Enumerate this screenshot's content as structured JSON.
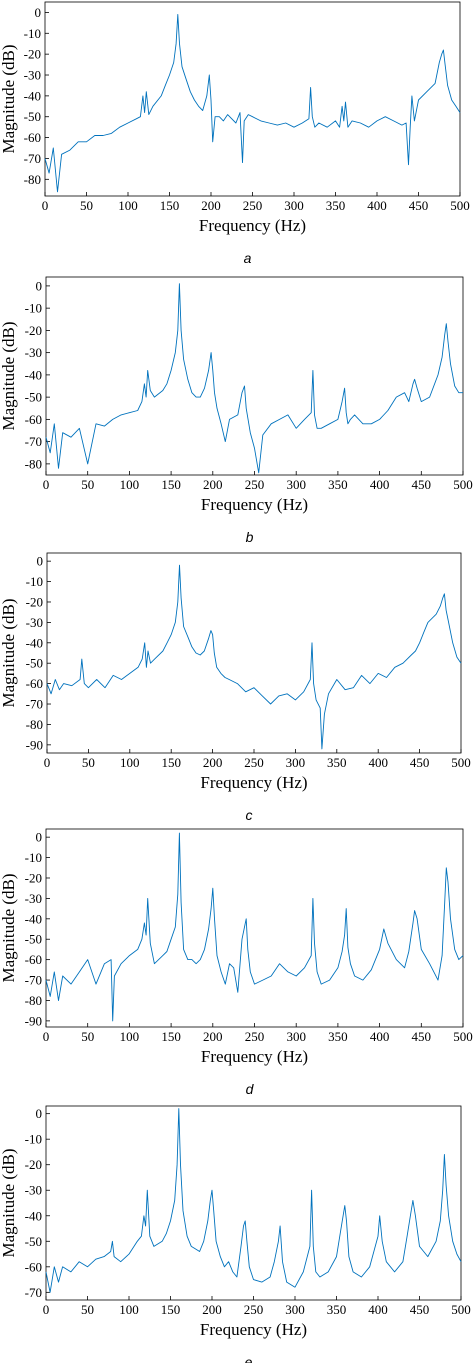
{
  "line_color": "#0072BD",
  "chart_data": [
    {
      "type": "line",
      "caption": "a",
      "xlabel": "Frequency (Hz)",
      "ylabel": "Magnitude (dB)",
      "xlim": [
        0,
        500
      ],
      "ylim": [
        -88,
        5
      ],
      "xticks": [
        "0",
        "50",
        "100",
        "150",
        "200",
        "250",
        "300",
        "350",
        "400",
        "450",
        "500"
      ],
      "yticks": [
        "0",
        "-10",
        "-20",
        "-30",
        "-40",
        "-50",
        "-60",
        "-70",
        "-80"
      ],
      "grid": false,
      "series": [
        {
          "x": [
            0,
            5,
            10,
            15,
            20,
            30,
            40,
            50,
            60,
            70,
            80,
            90,
            100,
            110,
            115,
            118,
            120,
            122,
            125,
            130,
            140,
            145,
            150,
            155,
            158,
            160,
            162,
            165,
            170,
            175,
            180,
            185,
            190,
            195,
            198,
            200,
            202,
            205,
            210,
            215,
            220,
            230,
            235,
            238,
            240,
            245,
            250,
            260,
            270,
            280,
            290,
            300,
            310,
            318,
            320,
            322,
            325,
            330,
            340,
            350,
            355,
            358,
            360,
            362,
            365,
            370,
            380,
            390,
            400,
            410,
            420,
            430,
            435,
            438,
            440,
            442,
            445,
            450,
            460,
            470,
            475,
            478,
            480,
            482,
            485,
            490,
            495,
            500
          ],
          "y": [
            -70,
            -77,
            -65,
            -86,
            -68,
            -66,
            -62,
            -62,
            -59,
            -59,
            -58,
            -55,
            -53,
            -51,
            -50,
            -40,
            -48,
            -38,
            -49,
            -45,
            -40,
            -35,
            -30,
            -24,
            -15,
            -1,
            -15,
            -26,
            -32,
            -38,
            -42,
            -45,
            -47,
            -40,
            -30,
            -42,
            -62,
            -50,
            -50,
            -52,
            -49,
            -53,
            -48,
            -72,
            -52,
            -49,
            -50,
            -52,
            -53,
            -54,
            -53,
            -55,
            -53,
            -51,
            -36,
            -50,
            -55,
            -53,
            -55,
            -52,
            -55,
            -45,
            -52,
            -43,
            -55,
            -52,
            -53,
            -55,
            -52,
            -50,
            -52,
            -54,
            -53,
            -73,
            -55,
            -40,
            -52,
            -42,
            -38,
            -34,
            -24,
            -20,
            -18,
            -25,
            -35,
            -42,
            -45,
            -48
          ]
        }
      ]
    },
    {
      "type": "line",
      "caption": "b",
      "xlabel": "Frequency (Hz)",
      "ylabel": "Magnitude (dB)",
      "xlim": [
        0,
        500
      ],
      "ylim": [
        -85,
        4
      ],
      "xticks": [
        "0",
        "50",
        "100",
        "150",
        "200",
        "250",
        "300",
        "350",
        "400",
        "450",
        "500"
      ],
      "yticks": [
        "0",
        "-10",
        "-20",
        "-30",
        "-40",
        "-50",
        "-60",
        "-70",
        "-80"
      ],
      "grid": false,
      "series": [
        {
          "x": [
            0,
            5,
            10,
            15,
            20,
            30,
            40,
            50,
            60,
            70,
            80,
            90,
            100,
            110,
            115,
            118,
            120,
            122,
            125,
            130,
            140,
            145,
            150,
            155,
            158,
            160,
            162,
            165,
            170,
            175,
            180,
            185,
            190,
            195,
            198,
            200,
            202,
            205,
            210,
            215,
            220,
            230,
            235,
            238,
            240,
            245,
            250,
            255,
            260,
            270,
            280,
            290,
            300,
            310,
            318,
            320,
            322,
            325,
            330,
            340,
            350,
            355,
            358,
            360,
            362,
            365,
            370,
            380,
            390,
            400,
            410,
            420,
            430,
            435,
            440,
            442,
            445,
            450,
            460,
            470,
            475,
            478,
            480,
            482,
            485,
            490,
            495,
            500
          ],
          "y": [
            -68,
            -75,
            -62,
            -82,
            -66,
            -68,
            -64,
            -80,
            -62,
            -63,
            -60,
            -58,
            -57,
            -56,
            -52,
            -44,
            -50,
            -38,
            -47,
            -50,
            -47,
            -44,
            -38,
            -30,
            -20,
            1,
            -20,
            -33,
            -42,
            -48,
            -50,
            -50,
            -46,
            -38,
            -30,
            -38,
            -48,
            -55,
            -62,
            -70,
            -60,
            -58,
            -48,
            -45,
            -55,
            -66,
            -73,
            -84,
            -67,
            -62,
            -60,
            -58,
            -64,
            -60,
            -57,
            -38,
            -58,
            -64,
            -64,
            -62,
            -60,
            -52,
            -46,
            -57,
            -62,
            -60,
            -58,
            -62,
            -62,
            -60,
            -56,
            -50,
            -48,
            -52,
            -44,
            -42,
            -46,
            -52,
            -50,
            -40,
            -32,
            -22,
            -17,
            -25,
            -35,
            -45,
            -48,
            -48
          ]
        }
      ]
    },
    {
      "type": "line",
      "caption": "c",
      "xlabel": "Frequency (Hz)",
      "ylabel": "Magnitude (dB)",
      "xlim": [
        0,
        500
      ],
      "ylim": [
        -94,
        4
      ],
      "xticks": [
        "0",
        "50",
        "100",
        "150",
        "200",
        "250",
        "300",
        "350",
        "400",
        "450",
        "500"
      ],
      "yticks": [
        "0",
        "-10",
        "-20",
        "-30",
        "-40",
        "-50",
        "-60",
        "-70",
        "-80",
        "-90"
      ],
      "grid": false,
      "series": [
        {
          "x": [
            0,
            5,
            10,
            15,
            20,
            30,
            40,
            42,
            45,
            50,
            60,
            70,
            80,
            90,
            100,
            110,
            115,
            118,
            120,
            122,
            125,
            130,
            140,
            145,
            150,
            155,
            158,
            160,
            162,
            165,
            170,
            175,
            180,
            185,
            190,
            195,
            198,
            200,
            202,
            205,
            210,
            215,
            220,
            230,
            240,
            250,
            260,
            270,
            280,
            290,
            300,
            310,
            318,
            320,
            322,
            325,
            330,
            332,
            335,
            340,
            350,
            360,
            370,
            380,
            390,
            400,
            410,
            420,
            430,
            440,
            445,
            450,
            455,
            460,
            470,
            475,
            478,
            480,
            482,
            485,
            490,
            495,
            500
          ],
          "y": [
            -60,
            -65,
            -58,
            -63,
            -60,
            -61,
            -58,
            -48,
            -60,
            -62,
            -58,
            -62,
            -56,
            -58,
            -55,
            -52,
            -48,
            -40,
            -52,
            -44,
            -50,
            -48,
            -44,
            -40,
            -36,
            -30,
            -20,
            -2,
            -18,
            -32,
            -37,
            -42,
            -45,
            -46,
            -44,
            -38,
            -34,
            -36,
            -45,
            -52,
            -55,
            -57,
            -58,
            -60,
            -64,
            -62,
            -66,
            -70,
            -66,
            -65,
            -68,
            -64,
            -58,
            -40,
            -60,
            -68,
            -72,
            -92,
            -75,
            -65,
            -58,
            -63,
            -62,
            -56,
            -60,
            -55,
            -57,
            -52,
            -50,
            -46,
            -44,
            -40,
            -35,
            -30,
            -26,
            -22,
            -18,
            -16,
            -24,
            -30,
            -40,
            -47,
            -50
          ]
        }
      ]
    },
    {
      "type": "line",
      "caption": "d",
      "xlabel": "Frequency (Hz)",
      "ylabel": "Magnitude (dB)",
      "xlim": [
        0,
        500
      ],
      "ylim": [
        -93,
        4
      ],
      "xticks": [
        "0",
        "50",
        "100",
        "150",
        "200",
        "250",
        "300",
        "350",
        "400",
        "450",
        "500"
      ],
      "yticks": [
        "0",
        "-10",
        "-20",
        "-30",
        "-40",
        "-50",
        "-60",
        "-70",
        "-80",
        "-90"
      ],
      "grid": false,
      "series": [
        {
          "x": [
            0,
            5,
            10,
            15,
            20,
            30,
            40,
            50,
            60,
            70,
            78,
            80,
            82,
            90,
            100,
            110,
            115,
            118,
            120,
            122,
            125,
            130,
            140,
            145,
            150,
            155,
            158,
            160,
            162,
            165,
            170,
            175,
            180,
            185,
            190,
            195,
            198,
            200,
            202,
            205,
            210,
            215,
            220,
            225,
            230,
            235,
            238,
            240,
            242,
            245,
            250,
            260,
            270,
            280,
            290,
            300,
            310,
            318,
            320,
            322,
            325,
            330,
            340,
            350,
            355,
            358,
            360,
            362,
            365,
            370,
            380,
            390,
            400,
            405,
            410,
            420,
            430,
            435,
            440,
            442,
            445,
            450,
            460,
            470,
            475,
            478,
            480,
            482,
            485,
            490,
            495,
            500
          ],
          "y": [
            -70,
            -78,
            -66,
            -80,
            -68,
            -72,
            -66,
            -60,
            -72,
            -62,
            -60,
            -90,
            -68,
            -62,
            -58,
            -55,
            -50,
            -42,
            -48,
            -30,
            -52,
            -62,
            -58,
            -56,
            -50,
            -44,
            -28,
            2,
            -32,
            -55,
            -60,
            -60,
            -62,
            -60,
            -55,
            -45,
            -35,
            -25,
            -40,
            -58,
            -66,
            -72,
            -62,
            -64,
            -76,
            -50,
            -44,
            -40,
            -55,
            -66,
            -72,
            -70,
            -68,
            -62,
            -66,
            -68,
            -64,
            -58,
            -30,
            -52,
            -66,
            -72,
            -70,
            -64,
            -56,
            -48,
            -35,
            -54,
            -62,
            -68,
            -70,
            -65,
            -55,
            -45,
            -52,
            -60,
            -64,
            -56,
            -42,
            -36,
            -40,
            -55,
            -62,
            -70,
            -58,
            -32,
            -15,
            -22,
            -40,
            -55,
            -60,
            -58
          ]
        }
      ]
    },
    {
      "type": "line",
      "caption": "e",
      "xlabel": "Frequency (Hz)",
      "ylabel": "Magnitude (dB)",
      "xlim": [
        0,
        500
      ],
      "ylim": [
        -73,
        3
      ],
      "xticks": [
        "0",
        "50",
        "100",
        "150",
        "200",
        "250",
        "300",
        "350",
        "400",
        "450",
        "500"
      ],
      "yticks": [
        "0",
        "-10",
        "-20",
        "-30",
        "-40",
        "-50",
        "-60",
        "-70"
      ],
      "grid": false,
      "series": [
        {
          "x": [
            0,
            5,
            10,
            15,
            20,
            30,
            40,
            50,
            60,
            70,
            78,
            80,
            82,
            90,
            100,
            110,
            115,
            118,
            120,
            122,
            125,
            130,
            140,
            145,
            150,
            155,
            158,
            160,
            162,
            165,
            170,
            175,
            180,
            185,
            190,
            195,
            198,
            200,
            202,
            205,
            210,
            215,
            220,
            225,
            230,
            235,
            238,
            240,
            242,
            245,
            250,
            260,
            270,
            275,
            280,
            282,
            285,
            290,
            300,
            310,
            318,
            320,
            322,
            325,
            330,
            340,
            350,
            355,
            358,
            360,
            362,
            365,
            370,
            380,
            390,
            400,
            402,
            405,
            410,
            420,
            430,
            435,
            440,
            442,
            445,
            450,
            460,
            470,
            475,
            478,
            480,
            482,
            485,
            490,
            495,
            500
          ],
          "y": [
            -62,
            -70,
            -60,
            -66,
            -60,
            -62,
            -58,
            -60,
            -57,
            -56,
            -54,
            -50,
            -56,
            -58,
            -55,
            -50,
            -48,
            -40,
            -44,
            -30,
            -48,
            -52,
            -50,
            -47,
            -42,
            -34,
            -20,
            2,
            -20,
            -38,
            -48,
            -52,
            -53,
            -54,
            -50,
            -42,
            -34,
            -30,
            -38,
            -50,
            -56,
            -60,
            -58,
            -62,
            -64,
            -52,
            -44,
            -42,
            -50,
            -60,
            -65,
            -66,
            -64,
            -58,
            -50,
            -44,
            -58,
            -66,
            -68,
            -62,
            -52,
            -30,
            -52,
            -62,
            -64,
            -62,
            -56,
            -46,
            -40,
            -36,
            -42,
            -56,
            -62,
            -64,
            -60,
            -48,
            -40,
            -50,
            -58,
            -62,
            -58,
            -48,
            -38,
            -34,
            -40,
            -52,
            -56,
            -50,
            -42,
            -30,
            -16,
            -28,
            -40,
            -50,
            -55,
            -58
          ]
        }
      ]
    }
  ]
}
